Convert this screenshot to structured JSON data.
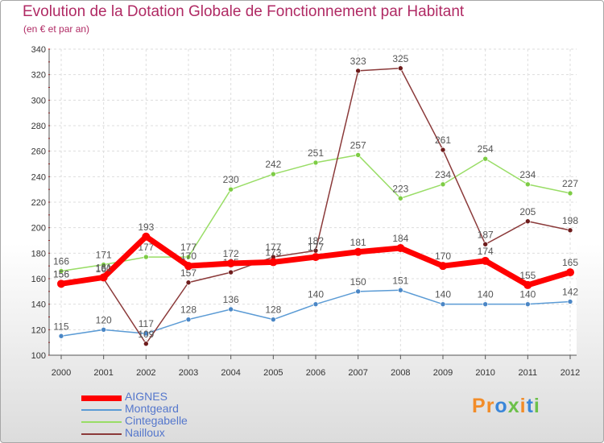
{
  "chart_data": {
    "type": "line",
    "title": "Evolution de la Dotation Globale de Fonctionnement par Habitant",
    "subtitle": "(en € et par an)",
    "xlabel": "",
    "ylabel": "",
    "ylim": [
      100,
      340
    ],
    "ytick_step": 20,
    "grid": true,
    "legend_position": "bottom-left",
    "x": [
      "2000",
      "2001",
      "2002",
      "2003",
      "2004",
      "2005",
      "2006",
      "2007",
      "2008",
      "2009",
      "2010",
      "2011",
      "2012"
    ],
    "series": [
      {
        "name": "Montgeard",
        "color": "#5b9bd5",
        "marker": "#4a86c5",
        "values": [
          115,
          120,
          117,
          128,
          136,
          128,
          140,
          150,
          151,
          140,
          140,
          140,
          142
        ],
        "labels": [
          "115",
          "120",
          "117",
          "128",
          "136",
          "128",
          "140",
          "150",
          "151",
          "140",
          "140",
          "140",
          "142"
        ]
      },
      {
        "name": "Cintegabelle",
        "color": "#99dd66",
        "marker": "#7dcc44",
        "values": [
          166,
          171,
          177,
          177,
          230,
          242,
          251,
          257,
          223,
          234,
          254,
          234,
          227
        ],
        "labels": [
          "166",
          "171",
          "177",
          "177",
          "230",
          "242",
          "251",
          "257",
          "223",
          "234",
          "254",
          "234",
          "227"
        ]
      },
      {
        "name": "Nailloux",
        "color": "#8b3a3a",
        "marker": "#6e1c1c",
        "values": [
          156,
          160,
          109,
          157,
          165,
          177,
          182,
          323,
          325,
          261,
          187,
          205,
          198
        ],
        "labels": [
          "156",
          "160",
          "109",
          "157",
          "165",
          "177",
          "182",
          "323",
          "325",
          "261",
          "187",
          "205",
          "198"
        ]
      },
      {
        "name": "AIGNES",
        "color": "#ff0000",
        "marker": "#ff0000",
        "values": [
          156,
          161,
          193,
          170,
          172,
          173,
          177,
          181,
          184,
          170,
          174,
          155,
          165
        ],
        "labels": [
          "156",
          "161",
          "193",
          "170",
          "172",
          "173",
          "177",
          "181",
          "184",
          "170",
          "174",
          "155",
          "165"
        ]
      }
    ],
    "legend_order": [
      "AIGNES",
      "Montgeard",
      "Cintegabelle",
      "Nailloux"
    ]
  },
  "logo": {
    "text": "Proxiti",
    "colors": [
      "#f28c28",
      "#f28c28",
      "#3a86d9",
      "#6cc04a",
      "#f28c28",
      "#3a86d9",
      "#6cc04a"
    ]
  }
}
